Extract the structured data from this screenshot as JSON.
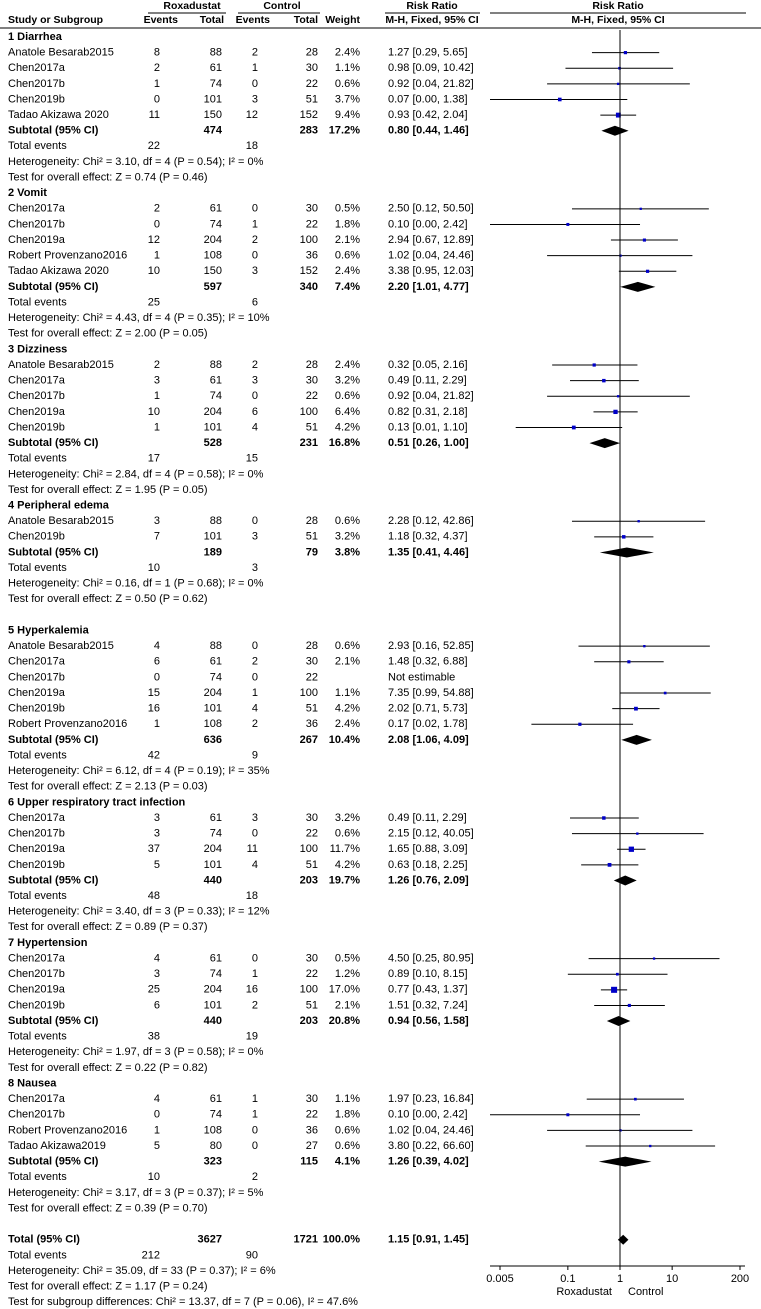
{
  "chart_data": {
    "type": "forest",
    "header": {
      "study": "Study or Subgroup",
      "group1": "Roxadustat",
      "group2": "Control",
      "events1": "Events",
      "total1": "Total",
      "events2": "Events",
      "total2": "Total",
      "weight": "Weight",
      "rr_title": "Risk Ratio",
      "rr_method": "M-H, Fixed, 95% CI",
      "plot_title": "Risk Ratio",
      "plot_method": "M-H, Fixed, 95% CI"
    },
    "groups": [
      {
        "title": "1 Diarrhea",
        "rows": [
          {
            "study": "Anatole Besarab2015",
            "e1": 8,
            "t1": 88,
            "e2": 2,
            "t2": 28,
            "weight": 2.4,
            "weight_label": "2.4%",
            "ci_label": "1.27 [0.29, 5.65]",
            "rr": 1.27,
            "lo": 0.29,
            "hi": 5.65
          },
          {
            "study": "Chen2017a",
            "e1": 2,
            "t1": 61,
            "e2": 1,
            "t2": 30,
            "weight": 1.1,
            "weight_label": "1.1%",
            "ci_label": "0.98 [0.09, 10.42]",
            "rr": 0.98,
            "lo": 0.09,
            "hi": 10.42
          },
          {
            "study": "Chen2017b",
            "e1": 1,
            "t1": 74,
            "e2": 0,
            "t2": 22,
            "weight": 0.6,
            "weight_label": "0.6%",
            "ci_label": "0.92 [0.04, 21.82]",
            "rr": 0.92,
            "lo": 0.04,
            "hi": 21.82
          },
          {
            "study": "Chen2019b",
            "e1": 0,
            "t1": 101,
            "e2": 3,
            "t2": 51,
            "weight": 3.7,
            "weight_label": "3.7%",
            "ci_label": "0.07 [0.00, 1.38]",
            "rr": 0.07,
            "lo": 0.0,
            "hi": 1.38
          },
          {
            "study": "Tadao Akizawa 2020",
            "e1": 11,
            "t1": 150,
            "e2": 12,
            "t2": 152,
            "weight": 9.4,
            "weight_label": "9.4%",
            "ci_label": "0.93 [0.42, 2.04]",
            "rr": 0.93,
            "lo": 0.42,
            "hi": 2.04
          }
        ],
        "subtotal": {
          "label": "Subtotal (95% CI)",
          "t1": 474,
          "t2": 283,
          "weight": 17.2,
          "weight_label": "17.2%",
          "ci_label": "0.80 [0.44, 1.46]",
          "rr": 0.8,
          "lo": 0.44,
          "hi": 1.46
        },
        "total_events": {
          "label": "Total events",
          "e1": 22,
          "e2": 18
        },
        "heterogeneity": "Heterogeneity: Chi² = 3.10, df = 4 (P = 0.54); I² = 0%",
        "overall_test": "Test for overall effect: Z = 0.74 (P = 0.46)"
      },
      {
        "title": "2 Vomit",
        "rows": [
          {
            "study": "Chen2017a",
            "e1": 2,
            "t1": 61,
            "e2": 0,
            "t2": 30,
            "weight": 0.5,
            "weight_label": "0.5%",
            "ci_label": "2.50 [0.12, 50.50]",
            "rr": 2.5,
            "lo": 0.12,
            "hi": 50.5
          },
          {
            "study": "Chen2017b",
            "e1": 0,
            "t1": 74,
            "e2": 1,
            "t2": 22,
            "weight": 1.8,
            "weight_label": "1.8%",
            "ci_label": "0.10 [0.00, 2.42]",
            "rr": 0.1,
            "lo": 0.0,
            "hi": 2.42
          },
          {
            "study": "Chen2019a",
            "e1": 12,
            "t1": 204,
            "e2": 2,
            "t2": 100,
            "weight": 2.1,
            "weight_label": "2.1%",
            "ci_label": "2.94 [0.67, 12.89]",
            "rr": 2.94,
            "lo": 0.67,
            "hi": 12.89
          },
          {
            "study": "Robert Provenzano2016",
            "e1": 1,
            "t1": 108,
            "e2": 0,
            "t2": 36,
            "weight": 0.6,
            "weight_label": "0.6%",
            "ci_label": "1.02 [0.04, 24.46]",
            "rr": 1.02,
            "lo": 0.04,
            "hi": 24.46
          },
          {
            "study": "Tadao Akizawa 2020",
            "e1": 10,
            "t1": 150,
            "e2": 3,
            "t2": 152,
            "weight": 2.4,
            "weight_label": "2.4%",
            "ci_label": "3.38 [0.95, 12.03]",
            "rr": 3.38,
            "lo": 0.95,
            "hi": 12.03
          }
        ],
        "subtotal": {
          "label": "Subtotal (95% CI)",
          "t1": 597,
          "t2": 340,
          "weight": 7.4,
          "weight_label": "7.4%",
          "ci_label": "2.20 [1.01, 4.77]",
          "rr": 2.2,
          "lo": 1.01,
          "hi": 4.77
        },
        "total_events": {
          "label": "Total events",
          "e1": 25,
          "e2": 6
        },
        "heterogeneity": "Heterogeneity: Chi² = 4.43, df = 4 (P = 0.35); I² = 10%",
        "overall_test": "Test for overall effect: Z = 2.00 (P = 0.05)"
      },
      {
        "title": "3 Dizziness",
        "rows": [
          {
            "study": "Anatole Besarab2015",
            "e1": 2,
            "t1": 88,
            "e2": 2,
            "t2": 28,
            "weight": 2.4,
            "weight_label": "2.4%",
            "ci_label": "0.32 [0.05, 2.16]",
            "rr": 0.32,
            "lo": 0.05,
            "hi": 2.16
          },
          {
            "study": "Chen2017a",
            "e1": 3,
            "t1": 61,
            "e2": 3,
            "t2": 30,
            "weight": 3.2,
            "weight_label": "3.2%",
            "ci_label": "0.49 [0.11, 2.29]",
            "rr": 0.49,
            "lo": 0.11,
            "hi": 2.29
          },
          {
            "study": "Chen2017b",
            "e1": 1,
            "t1": 74,
            "e2": 0,
            "t2": 22,
            "weight": 0.6,
            "weight_label": "0.6%",
            "ci_label": "0.92 [0.04, 21.82]",
            "rr": 0.92,
            "lo": 0.04,
            "hi": 21.82
          },
          {
            "study": "Chen2019a",
            "e1": 10,
            "t1": 204,
            "e2": 6,
            "t2": 100,
            "weight": 6.4,
            "weight_label": "6.4%",
            "ci_label": "0.82 [0.31, 2.18]",
            "rr": 0.82,
            "lo": 0.31,
            "hi": 2.18
          },
          {
            "study": "Chen2019b",
            "e1": 1,
            "t1": 101,
            "e2": 4,
            "t2": 51,
            "weight": 4.2,
            "weight_label": "4.2%",
            "ci_label": "0.13 [0.01, 1.10]",
            "rr": 0.13,
            "lo": 0.01,
            "hi": 1.1
          }
        ],
        "subtotal": {
          "label": "Subtotal (95% CI)",
          "t1": 528,
          "t2": 231,
          "weight": 16.8,
          "weight_label": "16.8%",
          "ci_label": "0.51 [0.26, 1.00]",
          "rr": 0.51,
          "lo": 0.26,
          "hi": 1.0
        },
        "total_events": {
          "label": "Total events",
          "e1": 17,
          "e2": 15
        },
        "heterogeneity": "Heterogeneity: Chi² = 2.84, df = 4 (P = 0.58); I² = 0%",
        "overall_test": "Test for overall effect: Z = 1.95 (P = 0.05)"
      },
      {
        "title": "4 Peripheral edema",
        "rows": [
          {
            "study": "Anatole Besarab2015",
            "e1": 3,
            "t1": 88,
            "e2": 0,
            "t2": 28,
            "weight": 0.6,
            "weight_label": "0.6%",
            "ci_label": "2.28 [0.12, 42.86]",
            "rr": 2.28,
            "lo": 0.12,
            "hi": 42.86
          },
          {
            "study": "Chen2019b",
            "e1": 7,
            "t1": 101,
            "e2": 3,
            "t2": 51,
            "weight": 3.2,
            "weight_label": "3.2%",
            "ci_label": "1.18 [0.32, 4.37]",
            "rr": 1.18,
            "lo": 0.32,
            "hi": 4.37
          }
        ],
        "subtotal": {
          "label": "Subtotal (95% CI)",
          "t1": 189,
          "t2": 79,
          "weight": 3.8,
          "weight_label": "3.8%",
          "ci_label": "1.35 [0.41, 4.46]",
          "rr": 1.35,
          "lo": 0.41,
          "hi": 4.46
        },
        "total_events": {
          "label": "Total events",
          "e1": 10,
          "e2": 3
        },
        "heterogeneity": "Heterogeneity: Chi² = 0.16, df = 1 (P = 0.68); I² = 0%",
        "overall_test": "Test for overall effect: Z = 0.50 (P = 0.62)"
      },
      {
        "title": "5 Hyperkalemia",
        "rows": [
          {
            "study": "Anatole Besarab2015",
            "e1": 4,
            "t1": 88,
            "e2": 0,
            "t2": 28,
            "weight": 0.6,
            "weight_label": "0.6%",
            "ci_label": "2.93 [0.16, 52.85]",
            "rr": 2.93,
            "lo": 0.16,
            "hi": 52.85
          },
          {
            "study": "Chen2017a",
            "e1": 6,
            "t1": 61,
            "e2": 2,
            "t2": 30,
            "weight": 2.1,
            "weight_label": "2.1%",
            "ci_label": "1.48 [0.32, 6.88]",
            "rr": 1.48,
            "lo": 0.32,
            "hi": 6.88
          },
          {
            "study": "Chen2017b",
            "e1": 0,
            "t1": 74,
            "e2": 0,
            "t2": 22,
            "ci_label": "Not estimable"
          },
          {
            "study": "Chen2019a",
            "e1": 15,
            "t1": 204,
            "e2": 1,
            "t2": 100,
            "weight": 1.1,
            "weight_label": "1.1%",
            "ci_label": "7.35 [0.99, 54.88]",
            "rr": 7.35,
            "lo": 0.99,
            "hi": 54.88
          },
          {
            "study": "Chen2019b",
            "e1": 16,
            "t1": 101,
            "e2": 4,
            "t2": 51,
            "weight": 4.2,
            "weight_label": "4.2%",
            "ci_label": "2.02 [0.71, 5.73]",
            "rr": 2.02,
            "lo": 0.71,
            "hi": 5.73
          },
          {
            "study": "Robert Provenzano2016",
            "e1": 1,
            "t1": 108,
            "e2": 2,
            "t2": 36,
            "weight": 2.4,
            "weight_label": "2.4%",
            "ci_label": "0.17 [0.02, 1.78]",
            "rr": 0.17,
            "lo": 0.02,
            "hi": 1.78
          }
        ],
        "subtotal": {
          "label": "Subtotal (95% CI)",
          "t1": 636,
          "t2": 267,
          "weight": 10.4,
          "weight_label": "10.4%",
          "ci_label": "2.08 [1.06, 4.09]",
          "rr": 2.08,
          "lo": 1.06,
          "hi": 4.09
        },
        "total_events": {
          "label": "Total events",
          "e1": 42,
          "e2": 9
        },
        "heterogeneity": "Heterogeneity: Chi² = 6.12, df = 4 (P = 0.19); I² = 35%",
        "overall_test": "Test for overall effect: Z = 2.13 (P = 0.03)"
      },
      {
        "title": "6 Upper respiratory tract infection",
        "rows": [
          {
            "study": "Chen2017a",
            "e1": 3,
            "t1": 61,
            "e2": 3,
            "t2": 30,
            "weight": 3.2,
            "weight_label": "3.2%",
            "ci_label": "0.49 [0.11, 2.29]",
            "rr": 0.49,
            "lo": 0.11,
            "hi": 2.29
          },
          {
            "study": "Chen2017b",
            "e1": 3,
            "t1": 74,
            "e2": 0,
            "t2": 22,
            "weight": 0.6,
            "weight_label": "0.6%",
            "ci_label": "2.15 [0.12, 40.05]",
            "rr": 2.15,
            "lo": 0.12,
            "hi": 40.05
          },
          {
            "study": "Chen2019a",
            "e1": 37,
            "t1": 204,
            "e2": 11,
            "t2": 100,
            "weight": 11.7,
            "weight_label": "11.7%",
            "ci_label": "1.65 [0.88, 3.09]",
            "rr": 1.65,
            "lo": 0.88,
            "hi": 3.09
          },
          {
            "study": "Chen2019b",
            "e1": 5,
            "t1": 101,
            "e2": 4,
            "t2": 51,
            "weight": 4.2,
            "weight_label": "4.2%",
            "ci_label": "0.63 [0.18, 2.25]",
            "rr": 0.63,
            "lo": 0.18,
            "hi": 2.25
          }
        ],
        "subtotal": {
          "label": "Subtotal (95% CI)",
          "t1": 440,
          "t2": 203,
          "weight": 19.7,
          "weight_label": "19.7%",
          "ci_label": "1.26 [0.76, 2.09]",
          "rr": 1.26,
          "lo": 0.76,
          "hi": 2.09
        },
        "total_events": {
          "label": "Total events",
          "e1": 48,
          "e2": 18
        },
        "heterogeneity": "Heterogeneity: Chi² = 3.40, df = 3 (P = 0.33); I² = 12%",
        "overall_test": "Test for overall effect: Z = 0.89 (P = 0.37)"
      },
      {
        "title": "7 Hypertension",
        "rows": [
          {
            "study": "Chen2017a",
            "e1": 4,
            "t1": 61,
            "e2": 0,
            "t2": 30,
            "weight": 0.5,
            "weight_label": "0.5%",
            "ci_label": "4.50 [0.25, 80.95]",
            "rr": 4.5,
            "lo": 0.25,
            "hi": 80.95
          },
          {
            "study": "Chen2017b",
            "e1": 3,
            "t1": 74,
            "e2": 1,
            "t2": 22,
            "weight": 1.2,
            "weight_label": "1.2%",
            "ci_label": "0.89 [0.10, 8.15]",
            "rr": 0.89,
            "lo": 0.1,
            "hi": 8.15
          },
          {
            "study": "Chen2019a",
            "e1": 25,
            "t1": 204,
            "e2": 16,
            "t2": 100,
            "weight": 17.0,
            "weight_label": "17.0%",
            "ci_label": "0.77 [0.43, 1.37]",
            "rr": 0.77,
            "lo": 0.43,
            "hi": 1.37
          },
          {
            "study": "Chen2019b",
            "e1": 6,
            "t1": 101,
            "e2": 2,
            "t2": 51,
            "weight": 2.1,
            "weight_label": "2.1%",
            "ci_label": "1.51 [0.32, 7.24]",
            "rr": 1.51,
            "lo": 0.32,
            "hi": 7.24
          }
        ],
        "subtotal": {
          "label": "Subtotal (95% CI)",
          "t1": 440,
          "t2": 203,
          "weight": 20.8,
          "weight_label": "20.8%",
          "ci_label": "0.94 [0.56, 1.58]",
          "rr": 0.94,
          "lo": 0.56,
          "hi": 1.58
        },
        "total_events": {
          "label": "Total events",
          "e1": 38,
          "e2": 19
        },
        "heterogeneity": "Heterogeneity: Chi² = 1.97, df = 3 (P = 0.58); I² = 0%",
        "overall_test": "Test for overall effect: Z = 0.22 (P = 0.82)"
      },
      {
        "title": "8 Nausea",
        "rows": [
          {
            "study": "Chen2017a",
            "e1": 4,
            "t1": 61,
            "e2": 1,
            "t2": 30,
            "weight": 1.1,
            "weight_label": "1.1%",
            "ci_label": "1.97 [0.23, 16.84]",
            "rr": 1.97,
            "lo": 0.23,
            "hi": 16.84
          },
          {
            "study": "Chen2017b",
            "e1": 0,
            "t1": 74,
            "e2": 1,
            "t2": 22,
            "weight": 1.8,
            "weight_label": "1.8%",
            "ci_label": "0.10 [0.00, 2.42]",
            "rr": 0.1,
            "lo": 0.0,
            "hi": 2.42
          },
          {
            "study": "Robert Provenzano2016",
            "e1": 1,
            "t1": 108,
            "e2": 0,
            "t2": 36,
            "weight": 0.6,
            "weight_label": "0.6%",
            "ci_label": "1.02 [0.04, 24.46]",
            "rr": 1.02,
            "lo": 0.04,
            "hi": 24.46
          },
          {
            "study": "Tadao Akizawa2019",
            "e1": 5,
            "t1": 80,
            "e2": 0,
            "t2": 27,
            "weight": 0.6,
            "weight_label": "0.6%",
            "ci_label": "3.80 [0.22, 66.60]",
            "rr": 3.8,
            "lo": 0.22,
            "hi": 66.6
          }
        ],
        "subtotal": {
          "label": "Subtotal (95% CI)",
          "t1": 323,
          "t2": 115,
          "weight": 4.1,
          "weight_label": "4.1%",
          "ci_label": "1.26 [0.39, 4.02]",
          "rr": 1.26,
          "lo": 0.39,
          "hi": 4.02
        },
        "total_events": {
          "label": "Total events",
          "e1": 10,
          "e2": 2
        },
        "heterogeneity": "Heterogeneity: Chi² = 3.17, df = 3 (P = 0.37); I² = 5%",
        "overall_test": "Test for overall effect: Z = 0.39 (P = 0.70)"
      }
    ],
    "total": {
      "label": "Total (95% CI)",
      "t1": 3627,
      "t2": 1721,
      "weight": 100.0,
      "weight_label": "100.0%",
      "ci_label": "1.15 [0.91, 1.45]",
      "rr": 1.15,
      "lo": 0.91,
      "hi": 1.45
    },
    "total_events": {
      "label": "Total events",
      "e1": 212,
      "e2": 90
    },
    "heterogeneity": "Heterogeneity: Chi² = 35.09, df = 33 (P = 0.37); I² = 6%",
    "overall_test": "Test for overall effect: Z = 1.17 (P = 0.24)",
    "subgroup_test": "Test for subgroup differences: Chi² = 13.37, df = 7 (P = 0.06), I² = 47.6%",
    "log_x": true,
    "xlim": [
      0.005,
      200
    ],
    "xticks": [
      0.005,
      0.1,
      1,
      10,
      200
    ],
    "favours": [
      "Roxadustat",
      "Control"
    ],
    "marker_color": "#0000c8",
    "line_color": "#000000"
  }
}
